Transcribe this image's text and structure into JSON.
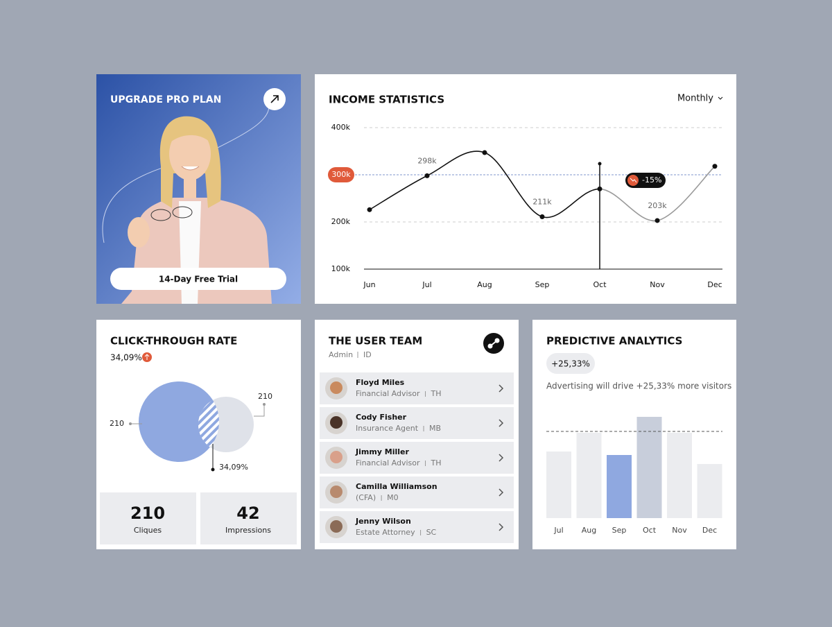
{
  "upgrade": {
    "title": "UPGRADE PRO PLAN",
    "button": "14-Day Free Trial"
  },
  "income": {
    "type": "line",
    "title": "INCOME STATISTICS",
    "period": "Monthly",
    "categories": [
      "Jun",
      "Jul",
      "Aug",
      "Sep",
      "Oct",
      "Nov",
      "Dec"
    ],
    "values": [
      226,
      298,
      347,
      211,
      270,
      203,
      318
    ],
    "value_labels": [
      null,
      "298k",
      null,
      "211k",
      null,
      "203k",
      null
    ],
    "color": "#111111",
    "forecast_color": "#9a9a9a",
    "ylim": [
      100,
      400
    ],
    "yticks": [
      {
        "value": 400,
        "label": "400k"
      },
      {
        "value": 200,
        "label": "200k"
      },
      {
        "value": 100,
        "label": "100k"
      }
    ],
    "reference": {
      "value": 300,
      "label": "300k"
    },
    "change": "-15%"
  },
  "ctr": {
    "title": "CLICK-THROUGH RATE",
    "rate": "34,09%",
    "left_label": "210",
    "right_label": "210",
    "overlap_label": "34,09%",
    "stats": [
      {
        "value": "210",
        "label": "Cliques"
      },
      {
        "value": "42",
        "label": "Impressions"
      }
    ]
  },
  "team": {
    "title": "THE USER TEAM",
    "roles": [
      "Admin",
      "ID"
    ],
    "members": [
      {
        "name": "Floyd Miles",
        "role": "Financial Advisor",
        "code": "TH"
      },
      {
        "name": "Cody Fisher",
        "role": "Insurance Agent",
        "code": "MB"
      },
      {
        "name": "Jimmy Miller",
        "role": "Financial Advisor",
        "code": "TH"
      },
      {
        "name": "Camilla Williamson",
        "role": "(CFA)",
        "code": "M0"
      },
      {
        "name": "Jenny Wilson",
        "role": "Estate Attorney",
        "code": "SC"
      }
    ]
  },
  "predictive": {
    "type": "bar",
    "title": "PREDICTIVE ANALYTICS",
    "change": "+25,33%",
    "description": "Advertising will drive +25,33% more visitors",
    "categories": [
      "Jul",
      "Aug",
      "Sep",
      "Oct",
      "Nov",
      "Dec"
    ],
    "values": [
      96,
      123,
      91,
      146,
      123,
      78
    ],
    "colors": [
      "#ebecef",
      "#ebecef",
      "#8fa8e0",
      "#c8cedb",
      "#ebecef",
      "#ebecef"
    ],
    "ylim": [
      0,
      150
    ],
    "target": 125
  }
}
